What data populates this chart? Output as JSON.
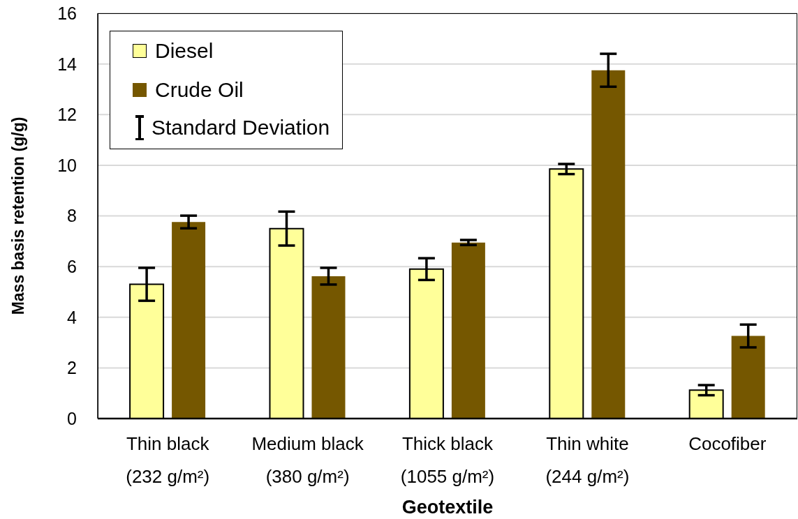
{
  "chart_data": {
    "type": "bar",
    "xlabel": "Geotextile",
    "ylabel": "Mass basis retention (g/g)",
    "categories": [
      "Thin black\n(232 g/m²)",
      "Medium black\n(380 g/m²)",
      "Thick black\n(1055 g/m²)",
      "Thin white\n(244 g/m²)",
      "Cocofiber"
    ],
    "series": [
      {
        "name": "Diesel",
        "color": "#ffff99",
        "values": [
          5.3,
          7.5,
          5.9,
          9.85,
          1.12
        ],
        "errors": [
          0.65,
          0.67,
          0.43,
          0.2,
          0.2
        ]
      },
      {
        "name": "Crude Oil",
        "color": "#755700",
        "values": [
          7.76,
          5.62,
          6.95,
          13.75,
          3.26
        ],
        "errors": [
          0.25,
          0.33,
          0.1,
          0.65,
          0.45
        ]
      }
    ],
    "ylim": [
      0,
      16
    ],
    "yticks": [
      0,
      2,
      4,
      6,
      8,
      10,
      12,
      14,
      16
    ],
    "grid": "y",
    "legend": "top left",
    "annotations": [
      "Standard Deviation"
    ]
  }
}
